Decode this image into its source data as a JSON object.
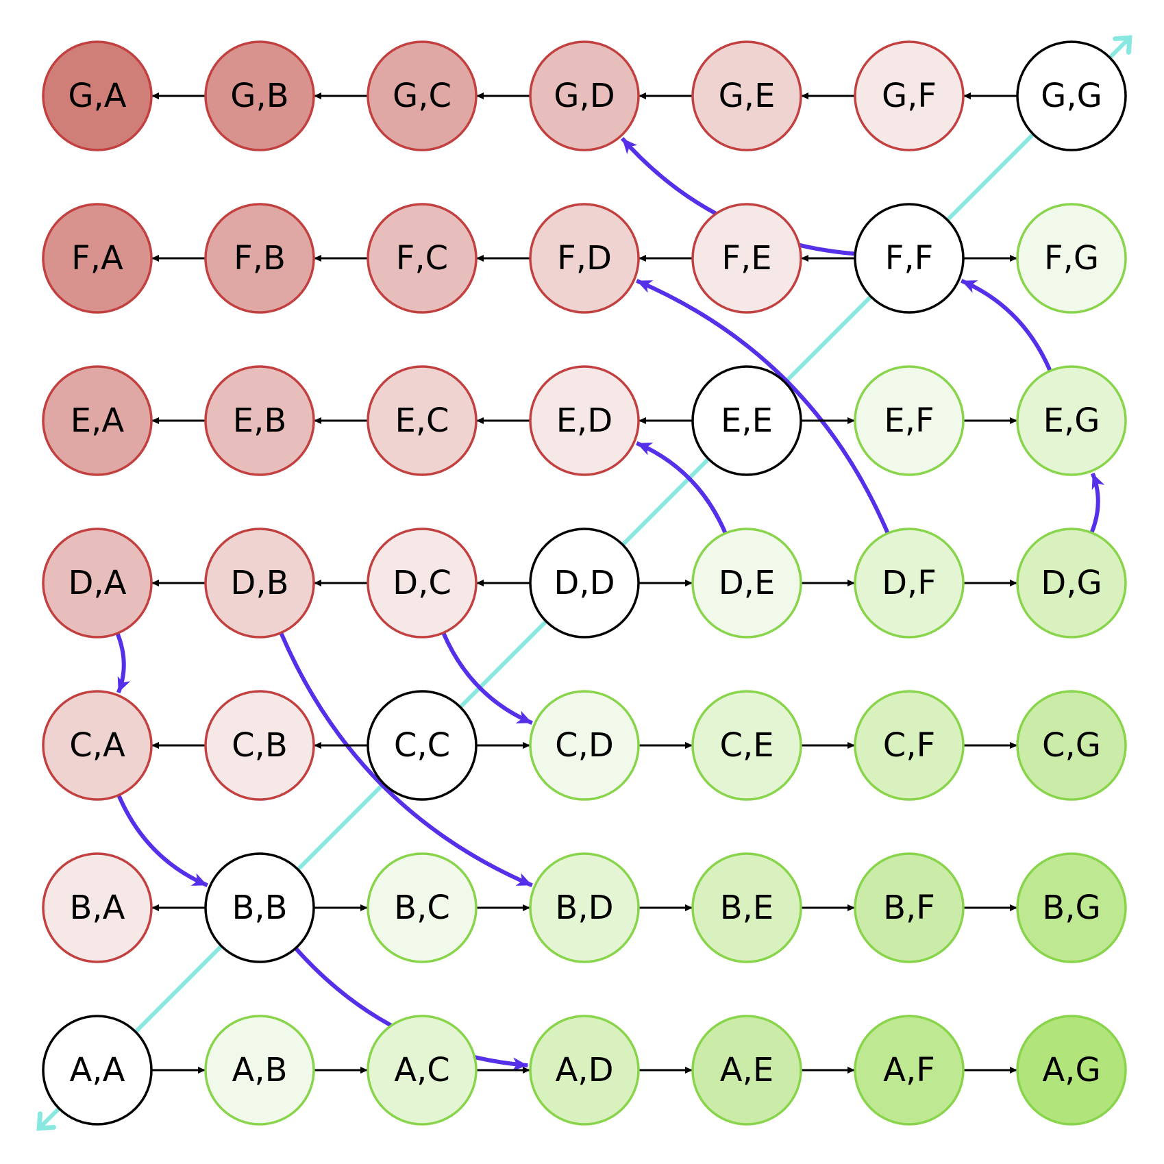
{
  "letters": [
    "A",
    "B",
    "C",
    "D",
    "E",
    "F",
    "G"
  ],
  "separator": ",",
  "colors": {
    "red_border": "#c24040",
    "red_fill_strong": "#d07e78",
    "red_fill_light": "#f6e8e7",
    "green_border": "#88d44a",
    "green_fill_strong": "#b2e47c",
    "green_fill_light": "#f1f9ea",
    "diagonal_border": "#000000",
    "diagonal_fill": "#ffffff",
    "arrow": "#000000",
    "curve": "#5530e8",
    "diagonal_line": "#88e8e0"
  },
  "curves": [
    {
      "from": "B,B",
      "to": "A,D"
    },
    {
      "from": "C,A",
      "to": "B,B"
    },
    {
      "from": "D,A",
      "to": "C,A"
    },
    {
      "from": "D,B",
      "to": "B,D"
    },
    {
      "from": "D,C",
      "to": "C,D"
    },
    {
      "from": "D,E",
      "to": "E,D"
    },
    {
      "from": "D,F",
      "to": "F,D"
    },
    {
      "from": "D,G",
      "to": "E,G"
    },
    {
      "from": "E,G",
      "to": "F,F"
    },
    {
      "from": "F,F",
      "to": "G,D"
    }
  ]
}
